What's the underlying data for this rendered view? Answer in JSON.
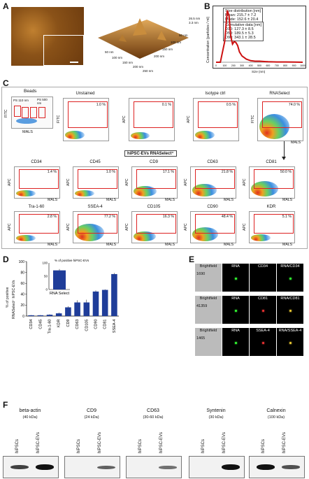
{
  "panel_labels": {
    "A": "A",
    "B": "B",
    "C": "C",
    "D": "D",
    "E": "E",
    "F": "F"
  },
  "A": {
    "scale_z1": "26.5 nm",
    "scale_z2": "3.3 nm",
    "x_ticks": [
      "50 nm",
      "100 nm",
      "150 nm",
      "200 nm",
      "250 nm"
    ],
    "y_ticks": [
      "50 nm",
      "100 nm",
      "150 nm",
      "200 nm"
    ]
  },
  "B": {
    "stats1": [
      "Size distribution [nm]",
      "Mean: 215.7 ± 7.2",
      "Mode: 152.6 ± 20.4"
    ],
    "stats2": [
      "Cumulative data [nm]",
      "D10: 127.3 ± 8.5",
      "D50: 189.5 ± 5.3",
      "D90: 343.1 ± 28.5"
    ],
    "ylabel": "Concentration (particles / ml)",
    "xlabel": "Size (nm)",
    "x_ticks": [
      "0",
      "100",
      "200",
      "300",
      "400",
      "500",
      "600",
      "700",
      "800",
      "900",
      "1000"
    ],
    "chart_data": {
      "type": "line",
      "x": [
        0,
        50,
        100,
        130,
        150,
        170,
        190,
        210,
        230,
        250,
        270,
        300,
        350,
        400,
        450,
        500,
        600,
        700,
        800,
        900,
        1000
      ],
      "values": [
        0,
        0,
        0.4,
        1.0,
        0.9,
        0.5,
        0.35,
        0.4,
        0.38,
        0.32,
        0.2,
        0.12,
        0.06,
        0.03,
        0.02,
        0.02,
        0.01,
        0.005,
        0.005,
        0.003,
        0
      ],
      "xlim": [
        0,
        1000
      ]
    }
  },
  "C": {
    "beads_title": "Beads",
    "beads_ylabel": "FITC",
    "beads_xlabel": "MALS",
    "bead_tags": [
      "PS 110 nm",
      "PS 500 nm",
      "PS 900 nm",
      "90 nm",
      "240 nm",
      "500 nm",
      "900 nm"
    ],
    "top": [
      {
        "title": "Unstained",
        "ylabel": "FITC",
        "xlabel": "",
        "pct": "1.0 %"
      },
      {
        "title": "",
        "ylabel": "APC",
        "xlabel": "",
        "pct": "0.1 %"
      },
      {
        "title": "Isotype ctrl",
        "ylabel": "APC",
        "xlabel": "",
        "pct": "0.5 %"
      },
      {
        "title": "RNASelect",
        "ylabel": "FITC",
        "xlabel": "MALS",
        "pct": "74.0 %"
      }
    ],
    "gate_title": "hiPSC-EVs RNASelect⁺",
    "row1": [
      {
        "name": "CD34",
        "pct": "1.4 %"
      },
      {
        "name": "CD45",
        "pct": "1.0 %"
      },
      {
        "name": "CD9",
        "pct": "17.1 %"
      },
      {
        "name": "CD63",
        "pct": "21.8 %"
      },
      {
        "name": "CD81",
        "pct": "50.0 %"
      }
    ],
    "row2": [
      {
        "name": "Tra-1-60",
        "pct": "2.8 %"
      },
      {
        "name": "SSEA-4",
        "pct": "77.2 %"
      },
      {
        "name": "CD105",
        "pct": "16.3 %"
      },
      {
        "name": "CD90",
        "pct": "48.4 %"
      },
      {
        "name": "KDR",
        "pct": "5.1 %"
      }
    ],
    "axis_y": "APC",
    "axis_x": "MALS"
  },
  "D": {
    "ylabel_1": "% of positive",
    "ylabel_2": "RNASelect⁺ hiPSC-EVs",
    "inset_ylabel": "% of positive hiPSC-EVs",
    "inset_category": "RNA Select",
    "y_ticks": [
      "0",
      "20",
      "40",
      "60",
      "80",
      "100"
    ],
    "inset_ticks": [
      "0",
      "50",
      "100"
    ],
    "chart_data": {
      "type": "bar",
      "categories": [
        "CD34",
        "CD45",
        "Tra-1-60",
        "KDR",
        "CD9",
        "CD63",
        "CD105",
        "CD90",
        "CD81",
        "SSEA-4"
      ],
      "values": [
        1.5,
        1.5,
        2.5,
        5,
        16,
        25,
        25,
        45,
        48,
        77
      ],
      "errors": [
        0.5,
        0.5,
        0.8,
        1.5,
        2,
        4,
        5,
        2,
        1,
        2
      ],
      "ylim": [
        0,
        100
      ],
      "inset": {
        "categories": [
          "RNA Select"
        ],
        "values": [
          72
        ],
        "ylim": [
          0,
          100
        ]
      }
    }
  },
  "E": {
    "rows": [
      {
        "count": "1690",
        "cols": [
          "Brightfield",
          "RNA",
          "CD34",
          "RNA/CD34"
        ]
      },
      {
        "count": "41359",
        "cols": [
          "Brightfield",
          "RNA",
          "CD81",
          "RNA/CD81"
        ]
      },
      {
        "count": "1465",
        "cols": [
          "Brightfield",
          "RNA",
          "SSEA-4",
          "RNA/SSEA-4"
        ]
      }
    ]
  },
  "F": {
    "blots": [
      {
        "title": "beta-actin",
        "kda": "(40 kDa)"
      },
      {
        "title": "CD9",
        "kda": "(24 kDa)"
      },
      {
        "title": "CD63",
        "kda": "(30-60 kDa)"
      },
      {
        "title": "Syntenin",
        "kda": "(30 kDa)"
      },
      {
        "title": "Calnexin",
        "kda": "(100 kDa)"
      }
    ],
    "lanes": [
      "hiPSCs",
      "hiPSC-EVs"
    ]
  },
  "colors": {
    "gate": "#dd2222",
    "hist": "#cc1111",
    "bar": "#1f3d99",
    "afm_dark": "#6b3a0e",
    "afm_light": "#d99a45"
  }
}
